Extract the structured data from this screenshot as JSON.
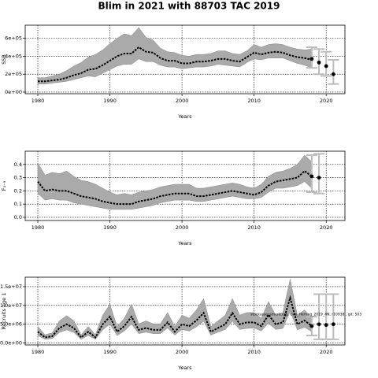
{
  "chart_data": [
    {
      "type": "line",
      "title": "Blim in 2021 with 88703 TAC 2019",
      "ylabel": "SSB",
      "xlabel": "Years",
      "xlim": [
        1978.25,
        2022.6
      ],
      "xticks": [
        1980,
        1990,
        2000,
        2010,
        2020
      ],
      "ylim": [
        -18000,
        746000
      ],
      "yticks": [
        {
          "value": 0,
          "label": "0e+00"
        },
        {
          "value": 200000,
          "label": "2e+05"
        },
        {
          "value": 400000,
          "label": "4e+05"
        },
        {
          "value": 600000,
          "label": "6e+05"
        }
      ],
      "grid": true,
      "color": "#000000",
      "band_color": "#aaaaaa",
      "x": [
        1980,
        1981,
        1982,
        1983,
        1984,
        1985,
        1986,
        1987,
        1988,
        1989,
        1990,
        1991,
        1992,
        1993,
        1994,
        1995,
        1996,
        1997,
        1998,
        1999,
        2000,
        2001,
        2002,
        2003,
        2004,
        2005,
        2006,
        2007,
        2008,
        2009,
        2010,
        2011,
        2012,
        2013,
        2014,
        2015,
        2016,
        2017,
        2018
      ],
      "values": [
        120000.0,
        120000.0,
        130000.0,
        140000.0,
        160000.0,
        190000.0,
        210000.0,
        250000.0,
        260000.0,
        300000.0,
        350000.0,
        400000.0,
        430000.0,
        430000.0,
        500000.0,
        450000.0,
        440000.0,
        380000.0,
        350000.0,
        350000.0,
        320000.0,
        320000.0,
        340000.0,
        340000.0,
        350000.0,
        370000.0,
        370000.0,
        350000.0,
        340000.0,
        390000.0,
        440000.0,
        420000.0,
        440000.0,
        450000.0,
        440000.0,
        410000.0,
        390000.0,
        380000.0,
        360000.0
      ],
      "band_low": [
        90000.0,
        90000.0,
        100000.0,
        110000.0,
        120000.0,
        140000.0,
        160000.0,
        180000.0,
        170000.0,
        210000.0,
        250000.0,
        290000.0,
        310000.0,
        310000.0,
        370000.0,
        340000.0,
        340000.0,
        300000.0,
        280000.0,
        280000.0,
        260000.0,
        270000.0,
        280000.0,
        280000.0,
        290000.0,
        310000.0,
        300000.0,
        290000.0,
        280000.0,
        330000.0,
        370000.0,
        360000.0,
        380000.0,
        380000.0,
        380000.0,
        350000.0,
        320000.0,
        300000.0,
        270000.0
      ],
      "band_high": [
        160000.0,
        160000.0,
        180000.0,
        200000.0,
        240000.0,
        290000.0,
        330000.0,
        390000.0,
        420000.0,
        470000.0,
        540000.0,
        600000.0,
        650000.0,
        630000.0,
        720000.0,
        610000.0,
        580000.0,
        490000.0,
        450000.0,
        440000.0,
        410000.0,
        400000.0,
        420000.0,
        420000.0,
        430000.0,
        460000.0,
        460000.0,
        430000.0,
        420000.0,
        460000.0,
        530000.0,
        500000.0,
        530000.0,
        540000.0,
        530000.0,
        500000.0,
        480000.0,
        470000.0,
        480000.0
      ],
      "forecast": {
        "x": [
          2018,
          2019,
          2020,
          2021
        ],
        "values": [
          370000.0,
          330000.0,
          290000.0,
          200000.0
        ],
        "low": [
          270000.0,
          200000.0,
          180000.0,
          90000.0
        ],
        "high": [
          500000.0,
          480000.0,
          450000.0,
          360000.0
        ],
        "color": "#000000",
        "bar_color": "#bbbbbb"
      }
    },
    {
      "type": "line",
      "ylabel": "F₃₋₉",
      "xlabel": "Years",
      "xlim": [
        1978.25,
        2022.6
      ],
      "xticks": [
        1980,
        1990,
        2000,
        2010,
        2020
      ],
      "ylim": [
        -0.024,
        0.5
      ],
      "yticks": [
        {
          "value": 0,
          "label": "0.0"
        },
        0.1,
        0.2,
        0.3,
        0.4
      ],
      "grid": true,
      "color": "#000000",
      "band_color": "#aaaaaa",
      "x": [
        1980,
        1981,
        1982,
        1983,
        1984,
        1985,
        1986,
        1987,
        1988,
        1989,
        1990,
        1991,
        1992,
        1993,
        1994,
        1995,
        1996,
        1997,
        1998,
        1999,
        2000,
        2001,
        2002,
        2003,
        2004,
        2005,
        2006,
        2007,
        2008,
        2009,
        2010,
        2011,
        2012,
        2013,
        2014,
        2015,
        2016,
        2017,
        2018
      ],
      "values": [
        0.27,
        0.2,
        0.21,
        0.2,
        0.2,
        0.18,
        0.16,
        0.15,
        0.14,
        0.12,
        0.11,
        0.1,
        0.1,
        0.1,
        0.12,
        0.13,
        0.14,
        0.16,
        0.17,
        0.18,
        0.18,
        0.18,
        0.16,
        0.16,
        0.17,
        0.18,
        0.19,
        0.2,
        0.19,
        0.18,
        0.17,
        0.19,
        0.24,
        0.27,
        0.28,
        0.29,
        0.3,
        0.35,
        0.31
      ],
      "band_low": [
        0.18,
        0.13,
        0.14,
        0.13,
        0.13,
        0.11,
        0.1,
        0.09,
        0.08,
        0.07,
        0.06,
        0.06,
        0.06,
        0.06,
        0.07,
        0.08,
        0.09,
        0.11,
        0.12,
        0.13,
        0.13,
        0.13,
        0.12,
        0.12,
        0.13,
        0.14,
        0.15,
        0.16,
        0.15,
        0.14,
        0.14,
        0.15,
        0.19,
        0.22,
        0.22,
        0.23,
        0.24,
        0.27,
        0.22
      ],
      "band_high": [
        0.41,
        0.32,
        0.34,
        0.33,
        0.35,
        0.31,
        0.28,
        0.27,
        0.25,
        0.22,
        0.19,
        0.17,
        0.18,
        0.17,
        0.19,
        0.2,
        0.21,
        0.23,
        0.24,
        0.25,
        0.25,
        0.25,
        0.22,
        0.22,
        0.23,
        0.24,
        0.25,
        0.26,
        0.25,
        0.23,
        0.22,
        0.25,
        0.31,
        0.34,
        0.35,
        0.37,
        0.4,
        0.47,
        0.42
      ],
      "forecast": {
        "x": [
          2018,
          2019
        ],
        "values": [
          0.31,
          0.3
        ],
        "low": [
          0.19,
          0.18
        ],
        "high": [
          0.47,
          0.48
        ],
        "color": "#000000",
        "bar_color": "#bbbbbb"
      }
    },
    {
      "type": "line",
      "ylabel": "Recruits age 1",
      "xlabel": "Years",
      "xlim": [
        1978.25,
        2022.6
      ],
      "xticks": [
        1980,
        1990,
        2000,
        2010,
        2020
      ],
      "ylim": [
        -500000,
        17500000
      ],
      "yticks": [
        {
          "value": 0,
          "label": "0.0e+00"
        },
        {
          "value": 5000000,
          "label": "5.0e+06"
        },
        {
          "value": 10000000,
          "label": "1.0e+07"
        },
        {
          "value": 15000000,
          "label": "1.5e+07"
        }
      ],
      "grid": true,
      "color": "#000000",
      "band_color": "#aaaaaa",
      "annotation": "stockassessment.org, Geo_Herring_2019_4N, r10938 , git: 503",
      "x": [
        1980,
        1981,
        1982,
        1983,
        1984,
        1985,
        1986,
        1987,
        1988,
        1989,
        1990,
        1991,
        1992,
        1993,
        1994,
        1995,
        1996,
        1997,
        1998,
        1999,
        2000,
        2001,
        2002,
        2003,
        2004,
        2005,
        2006,
        2007,
        2008,
        2009,
        2010,
        2011,
        2012,
        2013,
        2014,
        2015,
        2016,
        2017,
        2018
      ],
      "values": [
        3000000.0,
        1500000.0,
        1800000.0,
        4000000.0,
        5000000.0,
        4000000.0,
        1500000.0,
        3000000.0,
        1500000.0,
        5000000.0,
        7000000.0,
        3000000.0,
        4500000.0,
        7000000.0,
        3500000.0,
        4000000.0,
        3500000.0,
        3500000.0,
        5500000.0,
        3000000.0,
        5000000.0,
        4500000.0,
        6000000.0,
        8000000.0,
        3000000.0,
        4000000.0,
        5000000.0,
        8000000.0,
        5000000.0,
        5500000.0,
        5500000.0,
        4500000.0,
        7500000.0,
        5000000.0,
        5500000.0,
        12000000.0,
        5000000.0,
        6000000.0,
        4500000.0
      ],
      "band_low": [
        2000000.0,
        1000000.0,
        1200000.0,
        2800000.0,
        3500000.0,
        2800000.0,
        1000000.0,
        2000000.0,
        1000000.0,
        3500000.0,
        5000000.0,
        2000000.0,
        3200000.0,
        5000000.0,
        2500000.0,
        2900000.0,
        2500000.0,
        2500000.0,
        4000000.0,
        2100000.0,
        3600000.0,
        3200000.0,
        4300000.0,
        5800000.0,
        2100000.0,
        2900000.0,
        3600000.0,
        5800000.0,
        3600000.0,
        3900000.0,
        4000000.0,
        3200000.0,
        5300000.0,
        3600000.0,
        3900000.0,
        8500000.0,
        3500000.0,
        4200000.0,
        3000000.0
      ],
      "band_high": [
        4400000.0,
        2200000.0,
        2700000.0,
        5900000.0,
        7300000.0,
        5900000.0,
        2200000.0,
        4400000.0,
        2200000.0,
        7400000.0,
        10300000.0,
        4400000.0,
        6600000.0,
        10300000.0,
        5100000.0,
        5900000.0,
        5100000.0,
        5100000.0,
        8100000.0,
        4400000.0,
        7400000.0,
        6600000.0,
        8800000.0,
        11800000.0,
        4400000.0,
        5900000.0,
        7400000.0,
        11800000.0,
        7400000.0,
        8100000.0,
        8100000.0,
        6600000.0,
        11000000.0,
        7400000.0,
        8100000.0,
        17000000.0,
        7400000.0,
        8800000.0,
        6600000.0
      ],
      "forecast": {
        "x": [
          2018,
          2019,
          2020,
          2021
        ],
        "values": [
          4500000.0,
          5000000.0,
          4800000.0,
          5000000.0
        ],
        "low": [
          2000000.0,
          1000000.0,
          1000000.0,
          1000000.0
        ],
        "high": [
          7000000.0,
          13000000.0,
          13000000.0,
          13000000.0
        ],
        "color": "#000000",
        "bar_color": "#bbbbbb"
      }
    }
  ]
}
